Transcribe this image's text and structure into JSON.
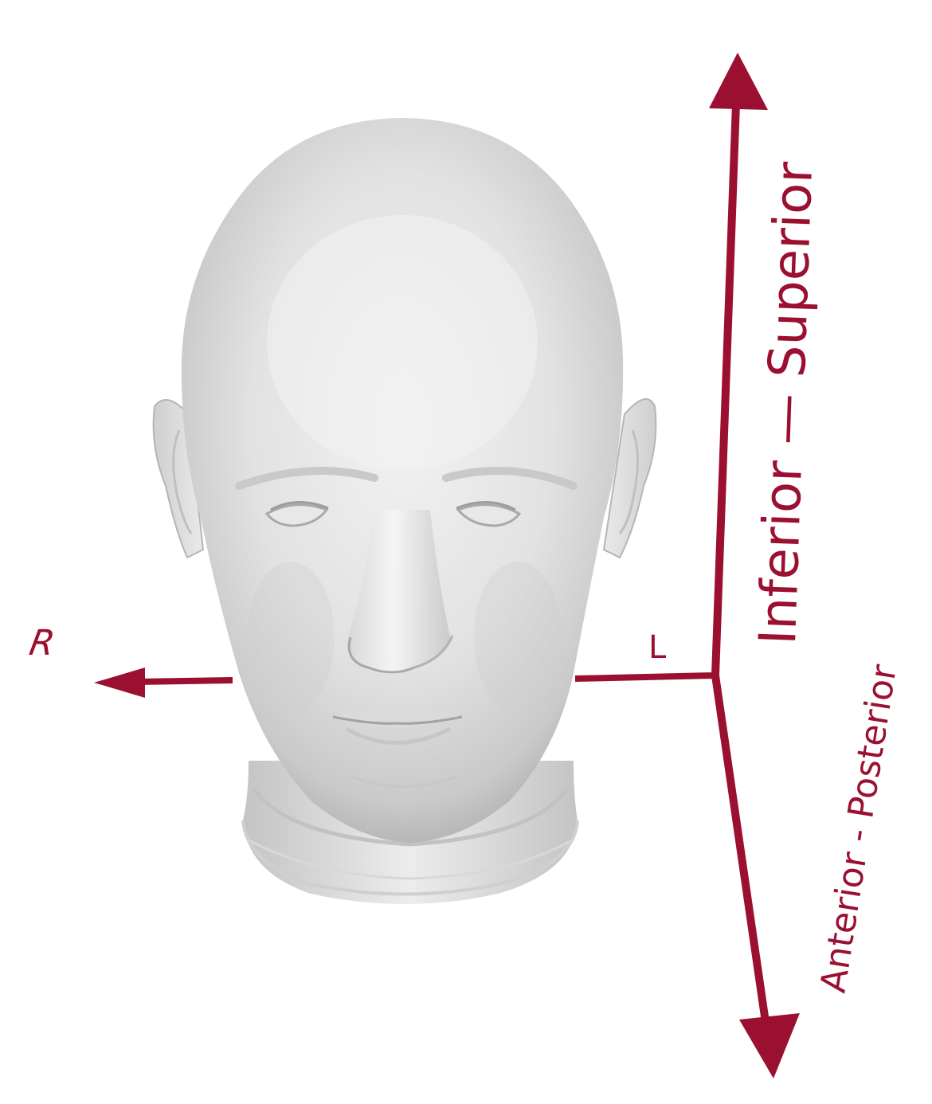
{
  "labels": {
    "right": "R",
    "left": "L",
    "vertical_axis": "Inferior — Superior",
    "depth_axis": "Anterior  -  Posterior"
  },
  "colors": {
    "axis": "#9b1030",
    "head_light": "#f0f0f0",
    "head_mid": "#d4d4d4",
    "head_shadow": "#a8a8a8",
    "background": "#ffffff"
  }
}
